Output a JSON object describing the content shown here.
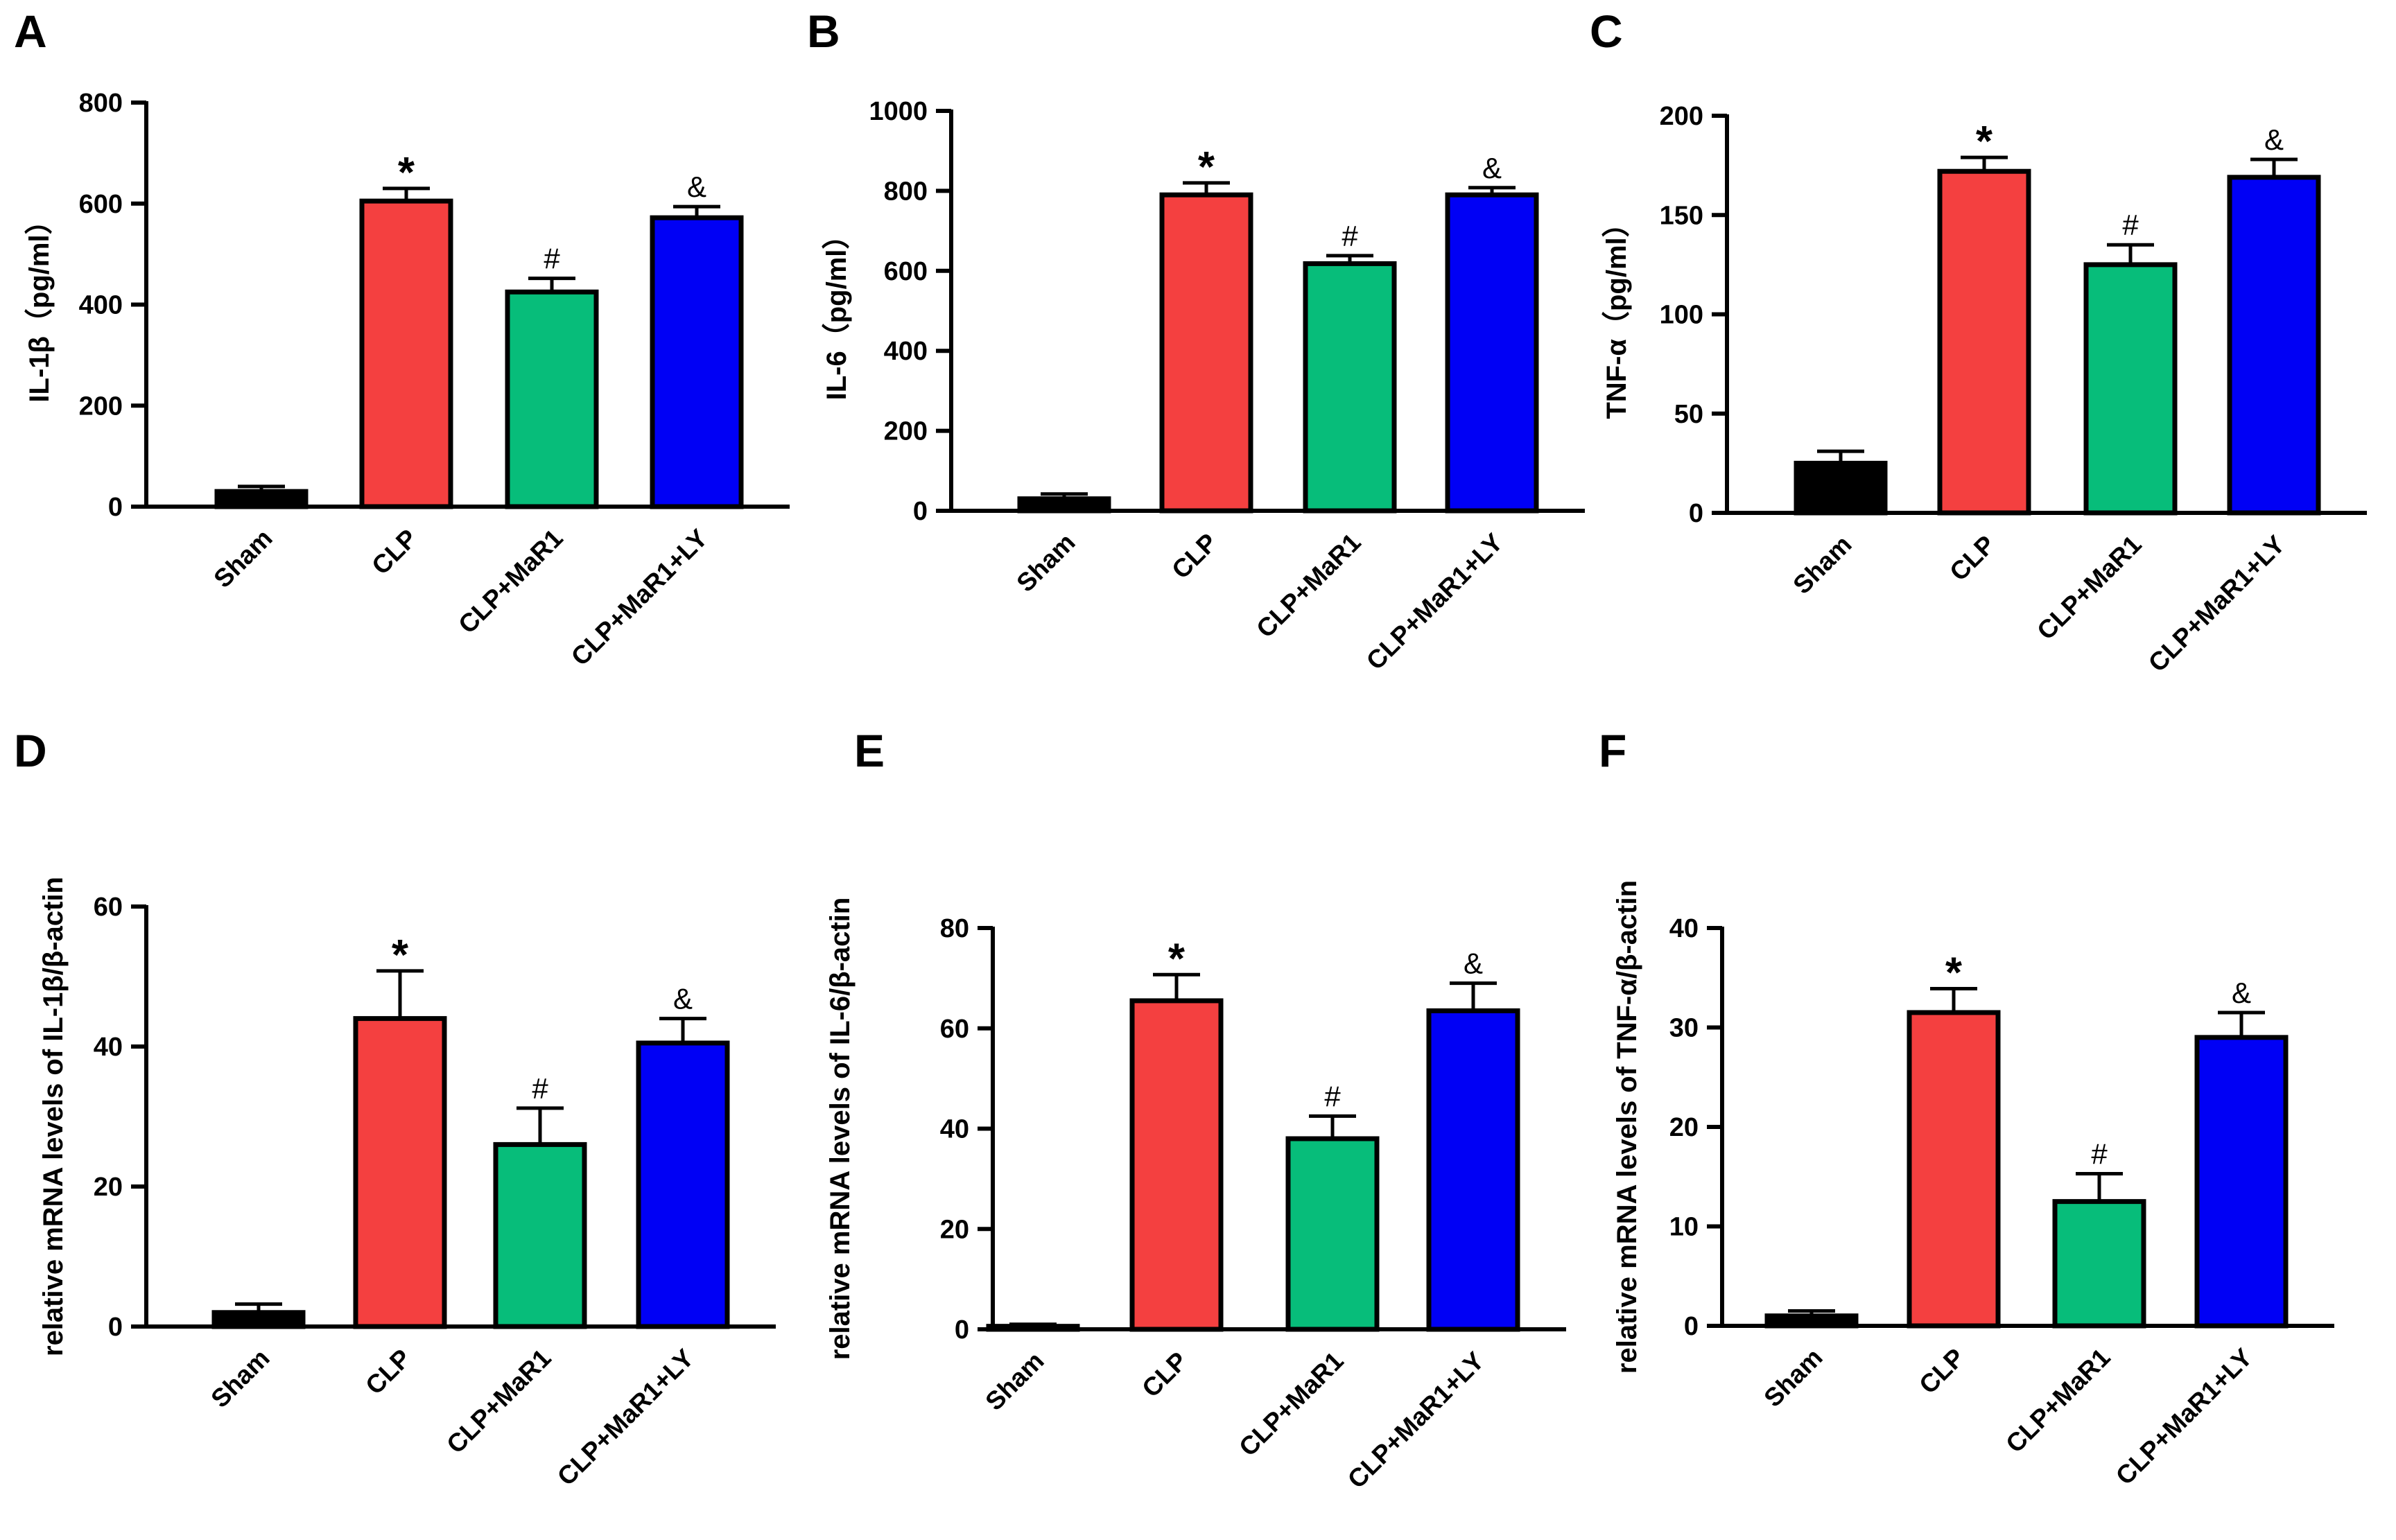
{
  "colors": {
    "Sham": "#000000",
    "CLP": "#F44040",
    "CLP+MaR1": "#07BD7A",
    "CLP+MaR1+LY": "#0000F5",
    "axis": "#000000"
  },
  "chart_data": [
    {
      "panel": "A",
      "type": "bar",
      "title": "",
      "xlabel": "",
      "ylabel": "IL-1β（pg/ml）",
      "ylim": [
        0,
        800
      ],
      "yticks": [
        "0",
        "200",
        "400",
        "600",
        "800"
      ],
      "categories": [
        "Sham",
        "CLP",
        "CLP+MaR1",
        "CLP+MaR1+LY"
      ],
      "values": [
        30,
        605,
        425,
        572
      ],
      "errors": [
        10,
        25,
        27,
        22
      ],
      "annotations": [
        "",
        "*",
        "#",
        "&"
      ]
    },
    {
      "panel": "B",
      "type": "bar",
      "title": "",
      "xlabel": "",
      "ylabel": "IL-6（pg/ml）",
      "ylim": [
        0,
        1000
      ],
      "yticks": [
        "0",
        "200",
        "400",
        "600",
        "800",
        "1000"
      ],
      "categories": [
        "Sham",
        "CLP",
        "CLP+MaR1",
        "CLP+MaR1+LY"
      ],
      "values": [
        30,
        790,
        618,
        790
      ],
      "errors": [
        12,
        30,
        20,
        18
      ],
      "annotations": [
        "",
        "*",
        "#",
        "&"
      ]
    },
    {
      "panel": "C",
      "type": "bar",
      "title": "",
      "xlabel": "",
      "ylabel": "TNF-α（pg/ml）",
      "ylim": [
        0,
        200
      ],
      "yticks": [
        "0",
        "50",
        "100",
        "150",
        "200"
      ],
      "categories": [
        "Sham",
        "CLP",
        "CLP+MaR1",
        "CLP+MaR1+LY"
      ],
      "values": [
        25,
        172,
        125,
        169
      ],
      "errors": [
        6,
        7,
        10,
        9
      ],
      "annotations": [
        "",
        "*",
        "#",
        "&"
      ]
    },
    {
      "panel": "D",
      "type": "bar",
      "title": "",
      "xlabel": "",
      "ylabel": "relative mRNA levels of IL-1β/β-actin",
      "ylim": [
        0,
        60
      ],
      "yticks": [
        "0",
        "20",
        "40",
        "60"
      ],
      "categories": [
        "Sham",
        "CLP",
        "CLP+MaR1",
        "CLP+MaR1+LY"
      ],
      "values": [
        2,
        44,
        26,
        40.5
      ],
      "errors": [
        1.2,
        6.8,
        5.2,
        3.5
      ],
      "annotations": [
        "",
        "*",
        "#",
        "&"
      ]
    },
    {
      "panel": "E",
      "type": "bar",
      "title": "",
      "xlabel": "",
      "ylabel": "relative mRNA levels of IL-6/β-actin",
      "ylim": [
        0,
        80
      ],
      "yticks": [
        "0",
        "20",
        "40",
        "60",
        "80"
      ],
      "categories": [
        "Sham",
        "CLP",
        "CLP+MaR1",
        "CLP+MaR1+LY"
      ],
      "values": [
        0.6,
        65.5,
        38,
        63.5
      ],
      "errors": [
        0.4,
        5.2,
        4.5,
        5.5
      ],
      "annotations": [
        "",
        "*",
        "#",
        "&"
      ]
    },
    {
      "panel": "F",
      "type": "bar",
      "title": "",
      "xlabel": "",
      "ylabel": "relative mRNA levels of TNF-α/β-actin",
      "ylim": [
        0,
        40
      ],
      "yticks": [
        "0",
        "10",
        "20",
        "30",
        "40"
      ],
      "categories": [
        "Sham",
        "CLP",
        "CLP+MaR1",
        "CLP+MaR1+LY"
      ],
      "values": [
        1,
        31.5,
        12.5,
        29
      ],
      "errors": [
        0.5,
        2.4,
        2.8,
        2.5
      ],
      "annotations": [
        "",
        "*",
        "#",
        "&"
      ]
    }
  ]
}
